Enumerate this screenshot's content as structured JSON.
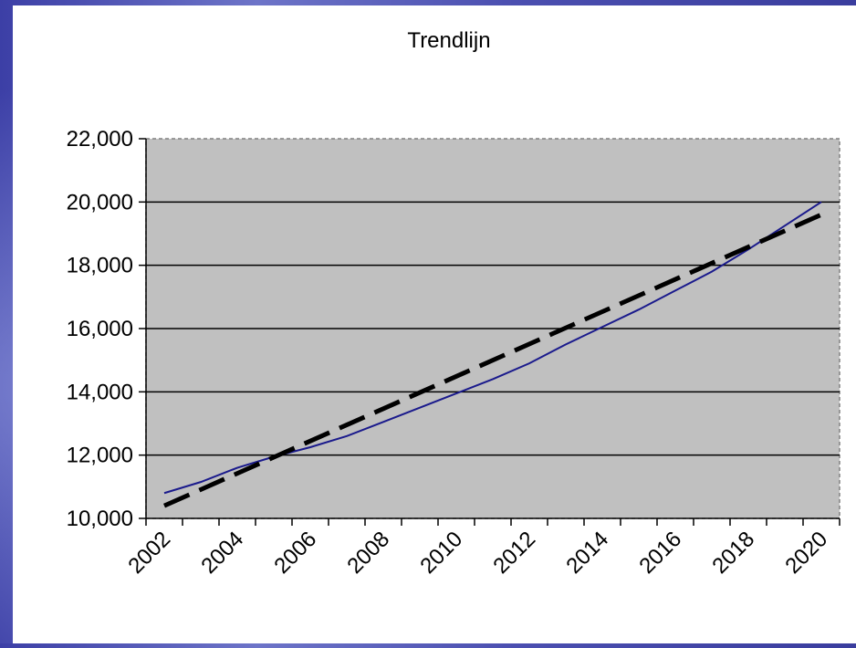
{
  "colors": {
    "slide_background": "#4b4fb0",
    "panel_background": "#ffffff",
    "plot_background": "#c0c0c0",
    "actual_line": "#1a1a8c",
    "trend_line": "#000000"
  },
  "chart_data": {
    "type": "line",
    "title": "Trendlijn",
    "xlabel": "",
    "ylabel": "",
    "x": [
      2002,
      2003,
      2004,
      2005,
      2006,
      2007,
      2008,
      2009,
      2010,
      2011,
      2012,
      2013,
      2014,
      2015,
      2016,
      2017,
      2018,
      2019,
      2020
    ],
    "xticks": [
      "2002",
      "2004",
      "2006",
      "2008",
      "2010",
      "2012",
      "2014",
      "2016",
      "2018",
      "2020"
    ],
    "ylim": [
      10000,
      22000
    ],
    "yticks": [
      "10,000",
      "12,000",
      "14,000",
      "16,000",
      "18,000",
      "20,000",
      "22,000"
    ],
    "grid": "horizontal",
    "series": [
      {
        "style": "solid",
        "color": "#1a1a8c",
        "values": [
          10800,
          11150,
          11600,
          11950,
          12250,
          12600,
          13050,
          13500,
          13950,
          14400,
          14900,
          15500,
          16050,
          16600,
          17200,
          17800,
          18500,
          19250,
          20000
        ]
      },
      {
        "style": "dashed",
        "color": "#000000",
        "start": 10400,
        "end": 19600
      }
    ]
  }
}
